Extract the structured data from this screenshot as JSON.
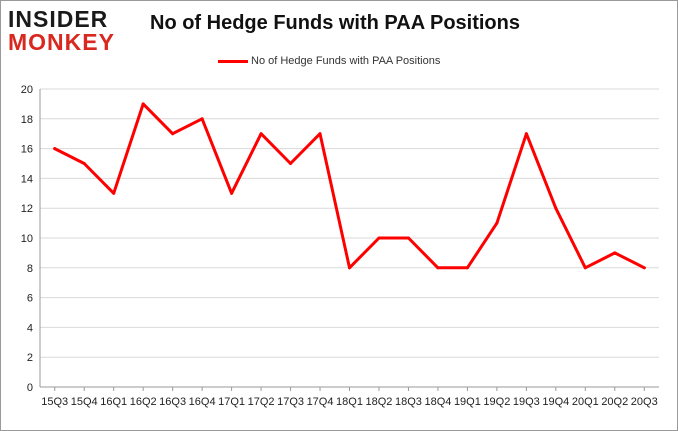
{
  "logo": {
    "line1": "INSIDER",
    "line2": "MONKEY"
  },
  "chart_data": {
    "type": "line",
    "title": "No of Hedge Funds with PAA Positions",
    "xlabel": "",
    "ylabel": "",
    "categories": [
      "15Q3",
      "15Q4",
      "16Q1",
      "16Q2",
      "16Q3",
      "16Q4",
      "17Q1",
      "17Q2",
      "17Q3",
      "17Q4",
      "18Q1",
      "18Q2",
      "18Q3",
      "18Q4",
      "19Q1",
      "19Q2",
      "19Q3",
      "19Q4",
      "20Q1",
      "20Q2",
      "20Q3"
    ],
    "series": [
      {
        "name": "No of Hedge Funds with PAA Positions",
        "color": "#ff0000",
        "values": [
          16,
          15,
          13,
          19,
          17,
          18,
          13,
          17,
          15,
          17,
          8,
          10,
          10,
          8,
          8,
          11,
          17,
          12,
          8,
          9,
          8
        ]
      }
    ],
    "ylim": [
      0,
      20
    ],
    "yticks": [
      0,
      2,
      4,
      6,
      8,
      10,
      12,
      14,
      16,
      18,
      20
    ],
    "grid": "horizontal",
    "legend_position": "top-center"
  }
}
